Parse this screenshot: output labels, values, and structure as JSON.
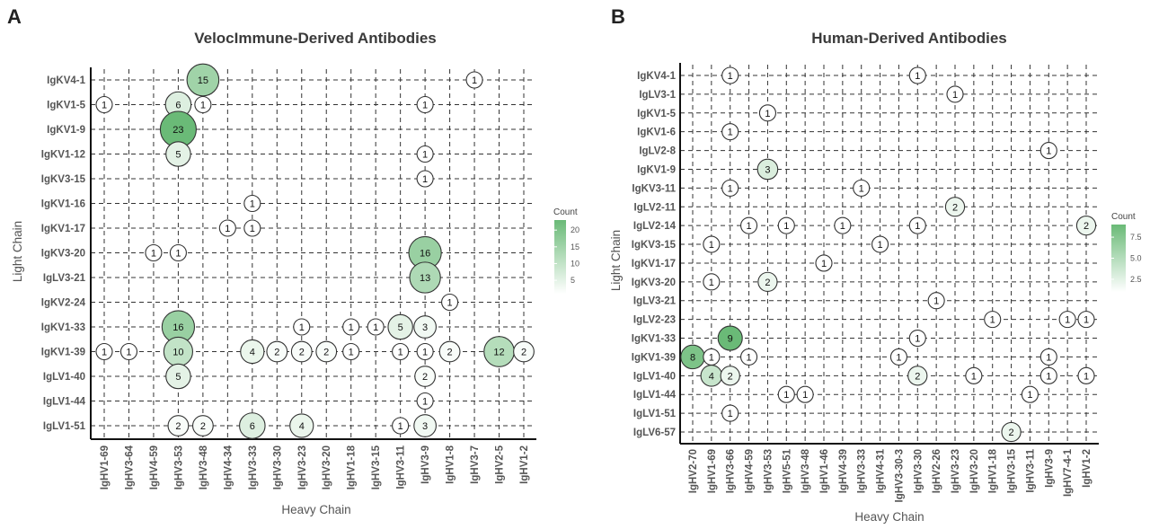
{
  "legend_title": "Count",
  "chart_data": [
    {
      "type": "bubble",
      "panel_letter": "A",
      "title": "VelocImmune-Derived Antibodies",
      "xlabel": "Heavy Chain",
      "ylabel": "Light Chain",
      "x_categories": [
        "IgHV1-69",
        "IgHV3-64",
        "IgHV4-59",
        "IgHV3-53",
        "IgHV3-48",
        "IgHV4-34",
        "IgHV3-33",
        "IgHV3-30",
        "IgHV3-23",
        "IgHV3-20",
        "IgHV1-18",
        "IgHV3-15",
        "IgHV3-11",
        "IgHV3-9",
        "IgHV1-8",
        "IgHV3-7",
        "IgHV2-5",
        "IgHV1-2"
      ],
      "y_categories": [
        "IgKV4-1",
        "IgKV1-5",
        "IgKV1-9",
        "IgKV1-12",
        "IgKV3-15",
        "IgKV1-16",
        "IgKV1-17",
        "IgKV3-20",
        "IgLV3-21",
        "IgKV2-24",
        "IgKV1-33",
        "IgKV1-39",
        "IgLV1-40",
        "IgLV1-44",
        "IgLV1-51"
      ],
      "color_scale": {
        "min": 1,
        "max": 23,
        "low": "#ffffff",
        "high": "#6aba77",
        "ticks": [
          5,
          10,
          15,
          20
        ]
      },
      "points": [
        {
          "x": "IgHV3-48",
          "y": "IgKV4-1",
          "count": 15
        },
        {
          "x": "IgHV3-7",
          "y": "IgKV4-1",
          "count": 1
        },
        {
          "x": "IgHV1-69",
          "y": "IgKV1-5",
          "count": 1
        },
        {
          "x": "IgHV3-53",
          "y": "IgKV1-5",
          "count": 6
        },
        {
          "x": "IgHV3-48",
          "y": "IgKV1-5",
          "count": 1
        },
        {
          "x": "IgHV3-9",
          "y": "IgKV1-5",
          "count": 1
        },
        {
          "x": "IgHV3-53",
          "y": "IgKV1-9",
          "count": 23
        },
        {
          "x": "IgHV3-53",
          "y": "IgKV1-12",
          "count": 5
        },
        {
          "x": "IgHV3-9",
          "y": "IgKV1-12",
          "count": 1
        },
        {
          "x": "IgHV3-9",
          "y": "IgKV3-15",
          "count": 1
        },
        {
          "x": "IgHV3-33",
          "y": "IgKV1-16",
          "count": 1
        },
        {
          "x": "IgHV4-34",
          "y": "IgKV1-17",
          "count": 1
        },
        {
          "x": "IgHV3-33",
          "y": "IgKV1-17",
          "count": 1
        },
        {
          "x": "IgHV4-59",
          "y": "IgKV3-20",
          "count": 1
        },
        {
          "x": "IgHV3-53",
          "y": "IgKV3-20",
          "count": 1
        },
        {
          "x": "IgHV3-9",
          "y": "IgKV3-20",
          "count": 16
        },
        {
          "x": "IgHV3-9",
          "y": "IgLV3-21",
          "count": 13
        },
        {
          "x": "IgHV1-8",
          "y": "IgKV2-24",
          "count": 1
        },
        {
          "x": "IgHV3-53",
          "y": "IgKV1-33",
          "count": 16
        },
        {
          "x": "IgHV3-23",
          "y": "IgKV1-33",
          "count": 1
        },
        {
          "x": "IgHV1-18",
          "y": "IgKV1-33",
          "count": 1
        },
        {
          "x": "IgHV3-15",
          "y": "IgKV1-33",
          "count": 1
        },
        {
          "x": "IgHV3-11",
          "y": "IgKV1-33",
          "count": 5
        },
        {
          "x": "IgHV3-9",
          "y": "IgKV1-33",
          "count": 3
        },
        {
          "x": "IgHV1-69",
          "y": "IgKV1-39",
          "count": 1
        },
        {
          "x": "IgHV3-64",
          "y": "IgKV1-39",
          "count": 1
        },
        {
          "x": "IgHV3-53",
          "y": "IgKV1-39",
          "count": 10
        },
        {
          "x": "IgHV3-33",
          "y": "IgKV1-39",
          "count": 4
        },
        {
          "x": "IgHV3-30",
          "y": "IgKV1-39",
          "count": 2
        },
        {
          "x": "IgHV3-23",
          "y": "IgKV1-39",
          "count": 2
        },
        {
          "x": "IgHV3-20",
          "y": "IgKV1-39",
          "count": 2
        },
        {
          "x": "IgHV1-18",
          "y": "IgKV1-39",
          "count": 1
        },
        {
          "x": "IgHV3-11",
          "y": "IgKV1-39",
          "count": 1
        },
        {
          "x": "IgHV3-9",
          "y": "IgKV1-39",
          "count": 1
        },
        {
          "x": "IgHV1-8",
          "y": "IgKV1-39",
          "count": 2
        },
        {
          "x": "IgHV2-5",
          "y": "IgKV1-39",
          "count": 12
        },
        {
          "x": "IgHV1-2",
          "y": "IgKV1-39",
          "count": 2
        },
        {
          "x": "IgHV3-53",
          "y": "IgLV1-40",
          "count": 5
        },
        {
          "x": "IgHV3-9",
          "y": "IgLV1-40",
          "count": 2
        },
        {
          "x": "IgHV3-9",
          "y": "IgLV1-44",
          "count": 1
        },
        {
          "x": "IgHV3-53",
          "y": "IgLV1-51",
          "count": 2
        },
        {
          "x": "IgHV3-48",
          "y": "IgLV1-51",
          "count": 2
        },
        {
          "x": "IgHV3-33",
          "y": "IgLV1-51",
          "count": 6
        },
        {
          "x": "IgHV3-23",
          "y": "IgLV1-51",
          "count": 4
        },
        {
          "x": "IgHV3-11",
          "y": "IgLV1-51",
          "count": 1
        },
        {
          "x": "IgHV3-9",
          "y": "IgLV1-51",
          "count": 3
        }
      ]
    },
    {
      "type": "bubble",
      "panel_letter": "B",
      "title": "Human-Derived Antibodies",
      "xlabel": "Heavy Chain",
      "ylabel": "Light Chain",
      "x_categories": [
        "IgHV2-70",
        "IgHV1-69",
        "IgHV3-66",
        "IgHV4-59",
        "IgHV3-53",
        "IgHV5-51",
        "IgHV3-48",
        "IgHV1-46",
        "IgHV4-39",
        "IgHV3-33",
        "IgHV4-31",
        "IgHV3-30-3",
        "IgHV3-30",
        "IgHV2-26",
        "IgHV3-23",
        "IgHV3-20",
        "IgHV1-18",
        "IgHV3-15",
        "IgHV3-11",
        "IgHV3-9",
        "IgHV7-4-1",
        "IgHV1-2"
      ],
      "y_categories": [
        "IgKV4-1",
        "IgLV3-1",
        "IgKV1-5",
        "IgKV1-6",
        "IgLV2-8",
        "IgKV1-9",
        "IgKV3-11",
        "IgLV2-11",
        "IgLV2-14",
        "IgKV3-15",
        "IgKV1-17",
        "IgKV3-20",
        "IgLV3-21",
        "IgLV2-23",
        "IgKV1-33",
        "IgKV1-39",
        "IgLV1-40",
        "IgLV1-44",
        "IgLV1-51",
        "IgLV6-57"
      ],
      "color_scale": {
        "min": 1,
        "max": 9,
        "low": "#ffffff",
        "high": "#6aba77",
        "ticks": [
          2.5,
          5.0,
          7.5
        ]
      },
      "points": [
        {
          "x": "IgHV3-66",
          "y": "IgKV4-1",
          "count": 1
        },
        {
          "x": "IgHV3-30",
          "y": "IgKV4-1",
          "count": 1
        },
        {
          "x": "IgHV3-23",
          "y": "IgLV3-1",
          "count": 1
        },
        {
          "x": "IgHV3-53",
          "y": "IgKV1-5",
          "count": 1
        },
        {
          "x": "IgHV3-66",
          "y": "IgKV1-6",
          "count": 1
        },
        {
          "x": "IgHV3-9",
          "y": "IgLV2-8",
          "count": 1
        },
        {
          "x": "IgHV3-53",
          "y": "IgKV1-9",
          "count": 3
        },
        {
          "x": "IgHV3-66",
          "y": "IgKV3-11",
          "count": 1
        },
        {
          "x": "IgHV3-33",
          "y": "IgKV3-11",
          "count": 1
        },
        {
          "x": "IgHV3-23",
          "y": "IgLV2-11",
          "count": 2
        },
        {
          "x": "IgHV4-59",
          "y": "IgLV2-14",
          "count": 1
        },
        {
          "x": "IgHV5-51",
          "y": "IgLV2-14",
          "count": 1
        },
        {
          "x": "IgHV4-39",
          "y": "IgLV2-14",
          "count": 1
        },
        {
          "x": "IgHV3-30",
          "y": "IgLV2-14",
          "count": 1
        },
        {
          "x": "IgHV1-2",
          "y": "IgLV2-14",
          "count": 2
        },
        {
          "x": "IgHV1-69",
          "y": "IgKV3-15",
          "count": 1
        },
        {
          "x": "IgHV4-31",
          "y": "IgKV3-15",
          "count": 1
        },
        {
          "x": "IgHV1-46",
          "y": "IgKV1-17",
          "count": 1
        },
        {
          "x": "IgHV1-69",
          "y": "IgKV3-20",
          "count": 1
        },
        {
          "x": "IgHV3-53",
          "y": "IgKV3-20",
          "count": 2
        },
        {
          "x": "IgHV2-26",
          "y": "IgLV3-21",
          "count": 1
        },
        {
          "x": "IgHV1-18",
          "y": "IgLV2-23",
          "count": 1
        },
        {
          "x": "IgHV7-4-1",
          "y": "IgLV2-23",
          "count": 1
        },
        {
          "x": "IgHV1-2",
          "y": "IgLV2-23",
          "count": 1
        },
        {
          "x": "IgHV3-66",
          "y": "IgKV1-33",
          "count": 9
        },
        {
          "x": "IgHV3-30",
          "y": "IgKV1-33",
          "count": 1
        },
        {
          "x": "IgHV2-70",
          "y": "IgKV1-39",
          "count": 8
        },
        {
          "x": "IgHV1-69",
          "y": "IgKV1-39",
          "count": 1
        },
        {
          "x": "IgHV4-59",
          "y": "IgKV1-39",
          "count": 1
        },
        {
          "x": "IgHV3-30-3",
          "y": "IgKV1-39",
          "count": 1
        },
        {
          "x": "IgHV3-9",
          "y": "IgKV1-39",
          "count": 1
        },
        {
          "x": "IgHV1-69",
          "y": "IgLV1-40",
          "count": 4
        },
        {
          "x": "IgHV3-66",
          "y": "IgLV1-40",
          "count": 2
        },
        {
          "x": "IgHV3-30",
          "y": "IgLV1-40",
          "count": 2
        },
        {
          "x": "IgHV3-20",
          "y": "IgLV1-40",
          "count": 1
        },
        {
          "x": "IgHV3-9",
          "y": "IgLV1-40",
          "count": 1
        },
        {
          "x": "IgHV1-2",
          "y": "IgLV1-40",
          "count": 1
        },
        {
          "x": "IgHV5-51",
          "y": "IgLV1-44",
          "count": 1
        },
        {
          "x": "IgHV3-48",
          "y": "IgLV1-44",
          "count": 1
        },
        {
          "x": "IgHV3-11",
          "y": "IgLV1-44",
          "count": 1
        },
        {
          "x": "IgHV3-66",
          "y": "IgLV1-51",
          "count": 1
        },
        {
          "x": "IgHV3-15",
          "y": "IgLV6-57",
          "count": 2
        }
      ]
    }
  ]
}
